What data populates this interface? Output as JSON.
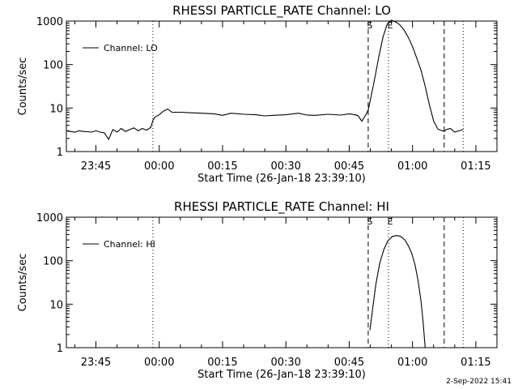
{
  "footer": {
    "timestamp": "2-Sep-2022 15:41"
  },
  "chart_data": [
    {
      "type": "line",
      "title": "RHESSI PARTICLE_RATE Channel: LO",
      "xlabel": "Start Time (26-Jan-18 23:39:10)",
      "ylabel": "Counts/sec",
      "yscale": "log",
      "ylim": [
        1,
        1000
      ],
      "xlim_minutes": [
        -7,
        95
      ],
      "x_ticks": [
        {
          "t": 0,
          "label": "23:45"
        },
        {
          "t": 15,
          "label": "00:00"
        },
        {
          "t": 30,
          "label": "00:15"
        },
        {
          "t": 45,
          "label": "00:30"
        },
        {
          "t": 60,
          "label": "00:45"
        },
        {
          "t": 75,
          "label": "01:00"
        },
        {
          "t": 90,
          "label": "01:15"
        }
      ],
      "y_ticks": [
        {
          "v": 1,
          "label": "1"
        },
        {
          "v": 10,
          "label": "10"
        },
        {
          "v": 100,
          "label": "100"
        },
        {
          "v": 1000,
          "label": "1000"
        }
      ],
      "legend": {
        "label": "Channel: LO",
        "position": "top-left"
      },
      "markers": [
        {
          "t": 13.5,
          "style": "dotted",
          "label": ""
        },
        {
          "t": 64.5,
          "style": "dashed",
          "label": "S"
        },
        {
          "t": 69.3,
          "style": "dotted",
          "label": "E"
        },
        {
          "t": 82.5,
          "style": "dashed",
          "label": ""
        },
        {
          "t": 87.0,
          "style": "dotted",
          "label": ""
        }
      ],
      "series": [
        {
          "t": [
            -7,
            -5,
            -4,
            -3,
            -1,
            0,
            1,
            2,
            3,
            4,
            5,
            6,
            7,
            8,
            9,
            10,
            11,
            12,
            13,
            13.5,
            14,
            15,
            16,
            17,
            18,
            20,
            22,
            25,
            28,
            30,
            32,
            35,
            38,
            40,
            42,
            45,
            48,
            50,
            52,
            55,
            58,
            60,
            62,
            63,
            64,
            64.5,
            65,
            66,
            67,
            68,
            69,
            70,
            71,
            72,
            73,
            74,
            75,
            76,
            77,
            78,
            79,
            80,
            81,
            82,
            82.5,
            83,
            84,
            85,
            86,
            87
          ],
          "values": [
            3.0,
            2.8,
            3.0,
            2.9,
            2.8,
            3.0,
            2.8,
            2.7,
            1.9,
            3.2,
            2.8,
            3.4,
            2.9,
            3.2,
            3.5,
            3.0,
            3.4,
            3.1,
            3.6,
            5.2,
            6.2,
            7.0,
            8.5,
            9.5,
            8.0,
            8.0,
            7.8,
            7.6,
            7.4,
            6.8,
            7.6,
            7.2,
            7.0,
            6.6,
            6.8,
            7.0,
            7.6,
            6.9,
            6.8,
            7.2,
            6.9,
            7.4,
            6.8,
            5.0,
            7.2,
            9.0,
            15.0,
            45.0,
            150.0,
            430.0,
            850.0,
            1050.0,
            960.0,
            820.0,
            620.0,
            420.0,
            260.0,
            140.0,
            75.0,
            32.0,
            12.0,
            5.0,
            3.3,
            3.0,
            2.9,
            3.2,
            3.4,
            2.8,
            3.0,
            3.2
          ]
        }
      ]
    },
    {
      "type": "line",
      "title": "RHESSI PARTICLE_RATE Channel: HI",
      "xlabel": "Start Time (26-Jan-18 23:39:10)",
      "ylabel": "Counts/sec",
      "yscale": "log",
      "ylim": [
        1,
        1000
      ],
      "xlim_minutes": [
        -7,
        95
      ],
      "x_ticks": [
        {
          "t": 0,
          "label": "23:45"
        },
        {
          "t": 15,
          "label": "00:00"
        },
        {
          "t": 30,
          "label": "00:15"
        },
        {
          "t": 45,
          "label": "00:30"
        },
        {
          "t": 60,
          "label": "00:45"
        },
        {
          "t": 75,
          "label": "01:00"
        },
        {
          "t": 90,
          "label": "01:15"
        }
      ],
      "y_ticks": [
        {
          "v": 1,
          "label": "1"
        },
        {
          "v": 10,
          "label": "10"
        },
        {
          "v": 100,
          "label": "100"
        },
        {
          "v": 1000,
          "label": "1000"
        }
      ],
      "legend": {
        "label": "Channel: HI",
        "position": "top-left"
      },
      "markers": [
        {
          "t": 13.5,
          "style": "dotted",
          "label": ""
        },
        {
          "t": 64.5,
          "style": "dashed",
          "label": "S"
        },
        {
          "t": 69.3,
          "style": "dotted",
          "label": "E"
        },
        {
          "t": 82.5,
          "style": "dashed",
          "label": ""
        },
        {
          "t": 87.0,
          "style": "dotted",
          "label": ""
        }
      ],
      "series": [
        {
          "t": [
            64.9,
            65.5,
            66.3,
            67.2,
            68.2,
            69.2,
            70.2,
            71.2,
            72.2,
            73.2,
            74.0,
            74.8,
            75.6,
            76.3,
            77.0,
            77.5,
            78.0
          ],
          "values": [
            2.5,
            7.0,
            28.0,
            85.0,
            180.0,
            290.0,
            360.0,
            380.0,
            360.0,
            300.0,
            220.0,
            150.0,
            80.0,
            35.0,
            12.0,
            4.0,
            1.0
          ]
        }
      ]
    }
  ]
}
